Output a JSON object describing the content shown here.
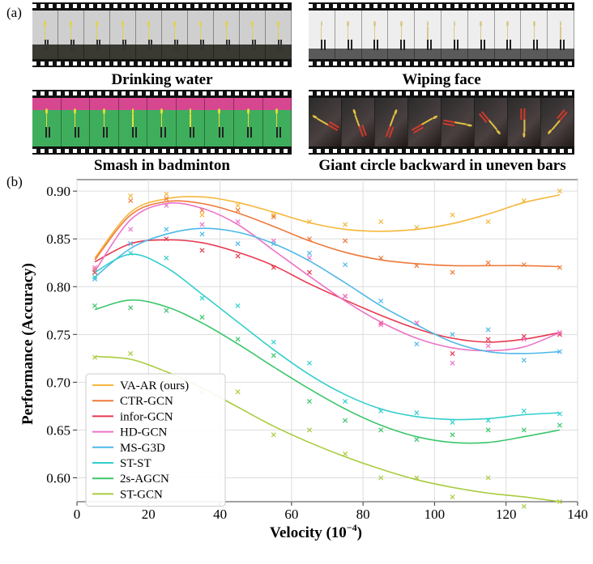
{
  "panels": {
    "a_label": "(a)",
    "b_label": "(b)",
    "clips": [
      {
        "caption": "Drinking water",
        "scene": "indoor-gray",
        "frames": 10
      },
      {
        "caption": "Wiping face",
        "scene": "indoor-white",
        "frames": 10
      },
      {
        "caption": "Smash in badminton",
        "scene": "badminton-court",
        "frames": 9
      },
      {
        "caption": "Giant circle backward in uneven bars",
        "scene": "gymnastics-dark",
        "frames": 8
      }
    ]
  },
  "chart_data": {
    "type": "line",
    "xlabel": "Velocity (10",
    "xlabel_sup": "−4",
    "xlabel_close": ")",
    "ylabel": "Performance (Accuracy)",
    "xlim": [
      0,
      140
    ],
    "ylim": [
      0.575,
      0.912
    ],
    "xticks": [
      0,
      20,
      40,
      60,
      80,
      100,
      120,
      140
    ],
    "yticks": [
      0.6,
      0.65,
      0.7,
      0.75,
      0.8,
      0.85,
      0.9
    ],
    "grid": true,
    "legend_position": "lower-left",
    "x": [
      5,
      15,
      25,
      35,
      45,
      55,
      65,
      75,
      85,
      95,
      105,
      115,
      125,
      135
    ],
    "series": [
      {
        "name": "VA-AR (ours)",
        "color": "#f5b73b",
        "scatter": [
          0.815,
          0.895,
          0.897,
          0.875,
          0.885,
          0.875,
          0.868,
          0.865,
          0.868,
          0.862,
          0.875,
          0.868,
          0.89,
          0.9
        ],
        "curve": [
          0.83,
          0.878,
          0.892,
          0.894,
          0.888,
          0.878,
          0.867,
          0.86,
          0.858,
          0.86,
          0.866,
          0.876,
          0.888,
          0.896
        ]
      },
      {
        "name": "CTR-GCN",
        "color": "#ee7a3a",
        "scatter": [
          0.818,
          0.89,
          0.892,
          0.88,
          0.88,
          0.873,
          0.85,
          0.848,
          0.83,
          0.822,
          0.815,
          0.825,
          0.823,
          0.82
        ],
        "curve": [
          0.828,
          0.875,
          0.889,
          0.887,
          0.877,
          0.863,
          0.848,
          0.836,
          0.828,
          0.824,
          0.822,
          0.822,
          0.822,
          0.821
        ]
      },
      {
        "name": "infor-GCN",
        "color": "#e6394f",
        "scatter": [
          0.815,
          0.845,
          0.85,
          0.838,
          0.832,
          0.82,
          0.815,
          0.79,
          0.762,
          0.762,
          0.73,
          0.745,
          0.748,
          0.75
        ],
        "curve": [
          0.826,
          0.845,
          0.849,
          0.846,
          0.836,
          0.822,
          0.803,
          0.786,
          0.77,
          0.756,
          0.746,
          0.742,
          0.745,
          0.752
        ]
      },
      {
        "name": "HD-GCN",
        "color": "#ec74c6",
        "scatter": [
          0.82,
          0.86,
          0.885,
          0.865,
          0.868,
          0.848,
          0.83,
          0.79,
          0.76,
          0.762,
          0.72,
          0.738,
          0.745,
          0.752
        ],
        "curve": [
          0.816,
          0.87,
          0.887,
          0.882,
          0.865,
          0.838,
          0.811,
          0.785,
          0.763,
          0.746,
          0.736,
          0.733,
          0.737,
          0.752
        ]
      },
      {
        "name": "MS-G3D",
        "color": "#4fb8e8",
        "scatter": [
          0.808,
          0.845,
          0.86,
          0.855,
          0.845,
          0.845,
          0.835,
          0.823,
          0.785,
          0.74,
          0.75,
          0.755,
          0.723,
          0.732
        ],
        "curve": [
          0.81,
          0.84,
          0.855,
          0.861,
          0.857,
          0.845,
          0.827,
          0.804,
          0.78,
          0.76,
          0.742,
          0.732,
          0.73,
          0.732
        ]
      },
      {
        "name": "ST-ST",
        "color": "#33cfcc",
        "scatter": [
          0.81,
          0.835,
          0.83,
          0.788,
          0.78,
          0.742,
          0.72,
          0.68,
          0.67,
          0.668,
          0.658,
          0.66,
          0.67,
          0.667
        ],
        "curve": [
          0.815,
          0.834,
          0.82,
          0.792,
          0.763,
          0.734,
          0.708,
          0.687,
          0.672,
          0.664,
          0.661,
          0.662,
          0.666,
          0.668
        ]
      },
      {
        "name": "2s-AGCN",
        "color": "#3bc66b",
        "scatter": [
          0.78,
          0.778,
          0.775,
          0.768,
          0.745,
          0.728,
          0.68,
          0.66,
          0.65,
          0.64,
          0.645,
          0.65,
          0.65,
          0.655
        ],
        "curve": [
          0.776,
          0.786,
          0.779,
          0.762,
          0.74,
          0.716,
          0.693,
          0.672,
          0.655,
          0.643,
          0.637,
          0.637,
          0.643,
          0.65
        ]
      },
      {
        "name": "ST-GCN",
        "color": "#a8cc3e",
        "scatter": [
          0.726,
          0.73,
          0.7,
          0.69,
          0.69,
          0.645,
          0.65,
          0.625,
          0.6,
          0.6,
          0.58,
          0.6,
          0.57,
          0.575
        ],
        "curve": [
          0.727,
          0.724,
          0.711,
          0.694,
          0.674,
          0.654,
          0.637,
          0.622,
          0.609,
          0.598,
          0.59,
          0.584,
          0.58,
          0.575
        ]
      }
    ]
  }
}
